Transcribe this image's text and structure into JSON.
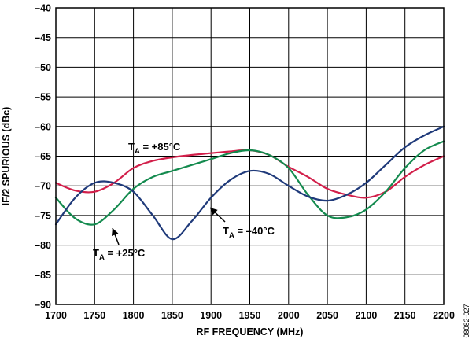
{
  "chart_data": {
    "type": "line",
    "xlabel": "RF FREQUENCY (MHz)",
    "ylabel": "IF/2 SPURIOUS (dBc)",
    "xlim": [
      1700,
      2200
    ],
    "ylim": [
      -90,
      -40
    ],
    "grid": true,
    "xticks": [
      "1700",
      "1750",
      "1800",
      "1850",
      "1900",
      "1950",
      "2000",
      "2050",
      "2100",
      "2150",
      "2200"
    ],
    "yticks": [
      "–40",
      "–45",
      "–50",
      "–55",
      "–60",
      "–65",
      "–70",
      "–75",
      "–80",
      "–85",
      "–90"
    ],
    "series": [
      {
        "name": "T_A = –40°C",
        "color": "#1f3a7a",
        "x": [
          1700,
          1725,
          1750,
          1775,
          1800,
          1825,
          1850,
          1875,
          1900,
          1925,
          1950,
          1975,
          2000,
          2025,
          2050,
          2075,
          2100,
          2125,
          2150,
          2175,
          2200
        ],
        "y": [
          -76.5,
          -72,
          -69.5,
          -69.5,
          -71,
          -75,
          -79,
          -76,
          -72,
          -69,
          -67.5,
          -68,
          -70,
          -71.8,
          -72.5,
          -71.5,
          -69.5,
          -66.5,
          -63.5,
          -61.5,
          -60
        ]
      },
      {
        "name": "T_A = +25°C",
        "color": "#138a4e",
        "x": [
          1700,
          1725,
          1750,
          1775,
          1800,
          1825,
          1850,
          1875,
          1900,
          1925,
          1950,
          1975,
          2000,
          2025,
          2050,
          2075,
          2100,
          2125,
          2150,
          2175,
          2200
        ],
        "y": [
          -72,
          -75.5,
          -76.5,
          -74,
          -70.5,
          -68.5,
          -67.5,
          -66.5,
          -65.5,
          -64.5,
          -64,
          -64.8,
          -67,
          -71.5,
          -75,
          -75.3,
          -74,
          -71,
          -67,
          -64,
          -62.5
        ]
      },
      {
        "name": "T_A = +85°C",
        "color": "#d21f4a",
        "x": [
          1700,
          1725,
          1750,
          1775,
          1800,
          1825,
          1850,
          1875,
          1900,
          1925,
          1950,
          1975,
          2000,
          2025,
          2050,
          2075,
          2100,
          2125,
          2150,
          2175,
          2200
        ],
        "y": [
          -69.5,
          -70.8,
          -71,
          -69.5,
          -67,
          -65.8,
          -65.2,
          -64.8,
          -64.5,
          -64.2,
          -64,
          -64.8,
          -66.8,
          -68.5,
          -70.5,
          -71.5,
          -72,
          -71,
          -68.5,
          -66.5,
          -65
        ]
      }
    ],
    "annotations": [
      {
        "key": "minus40",
        "pre": "T",
        "sub": "A",
        "post": " = –40°C"
      },
      {
        "key": "plus25",
        "pre": "T",
        "sub": "A",
        "post": " = +25°C"
      },
      {
        "key": "plus85",
        "pre": "T",
        "sub": "A",
        "post": " = +85°C"
      }
    ]
  },
  "figure_id": "08082-027"
}
